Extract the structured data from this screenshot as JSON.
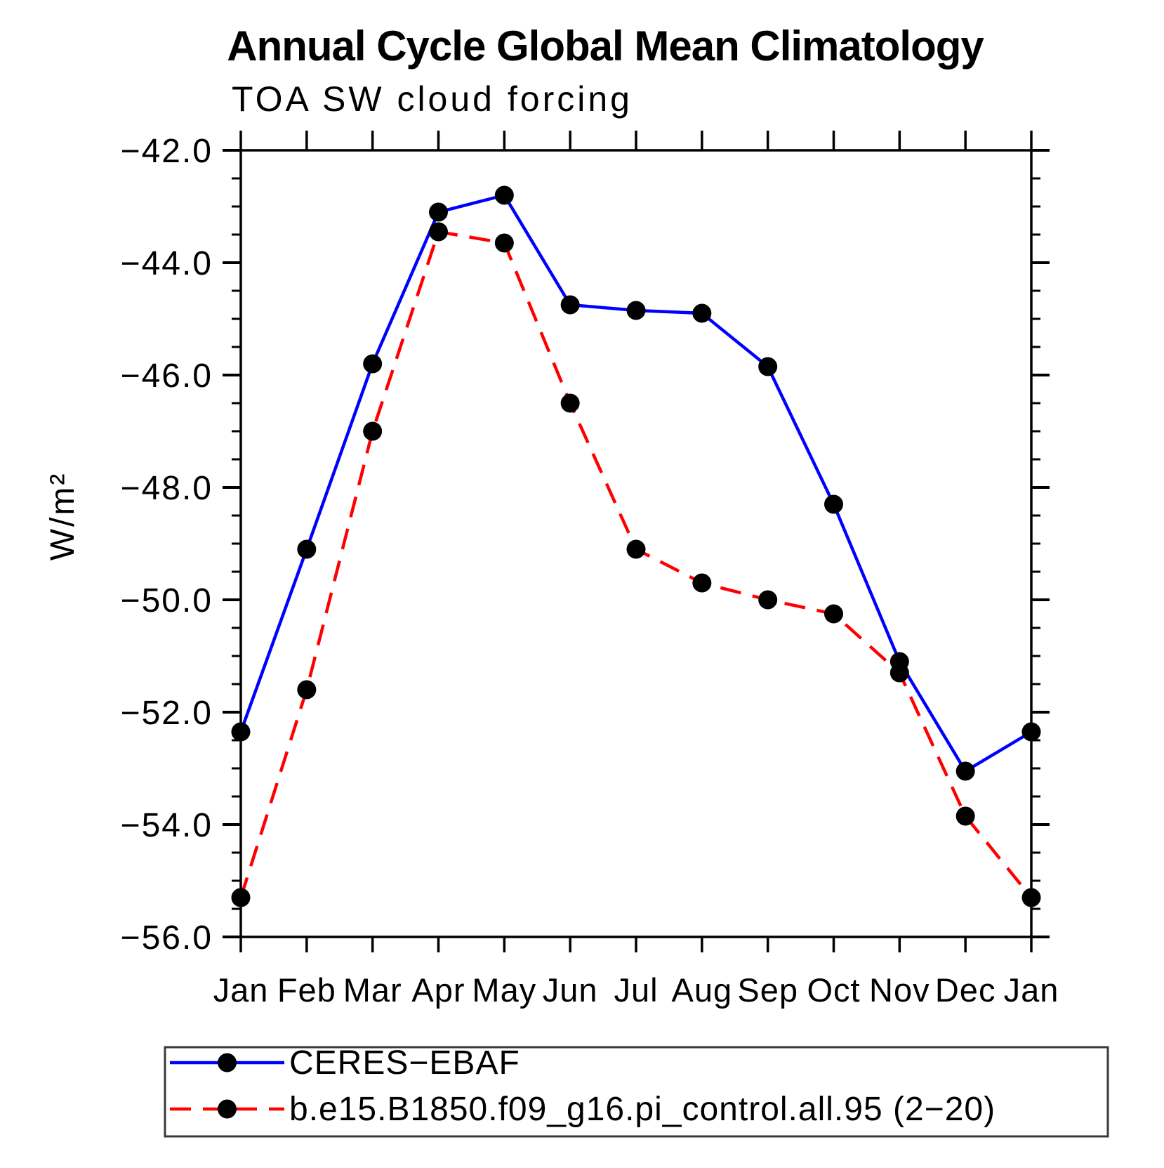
{
  "page": {
    "background_color": "#ffffff",
    "text_color": "#000000"
  },
  "chart_data": {
    "type": "line",
    "title": "Annual Cycle Global Mean Climatology",
    "subtitle": "TOA SW cloud forcing",
    "ylabel": "W/m²",
    "xlabel": "",
    "x_categories": [
      "Jan",
      "Feb",
      "Mar",
      "Apr",
      "May",
      "Jun",
      "Jul",
      "Aug",
      "Sep",
      "Oct",
      "Nov",
      "Dec",
      "Jan"
    ],
    "ylim": [
      -56.0,
      -42.0
    ],
    "y_tick_step": 2.0,
    "y_minor_step": 0.5,
    "y_tick_labels": [
      "-42.0",
      "-44.0",
      "-46.0",
      "-48.0",
      "-50.0",
      "-52.0",
      "-54.0",
      "-56.0"
    ],
    "grid": false,
    "legend_position": "bottom",
    "series": [
      {
        "name": "CERES−EBAF",
        "color": "#0000ff",
        "line_style": "solid",
        "marker": "filled-circle",
        "marker_color": "#000000",
        "values": [
          -52.35,
          -49.1,
          -45.8,
          -43.1,
          -42.8,
          -44.75,
          -44.85,
          -44.9,
          -45.85,
          -48.3,
          -51.1,
          -53.05,
          -52.35
        ]
      },
      {
        "name": "b.e15.B1850.f09_g16.pi_control.all.95 (2−20)",
        "color": "#ff0000",
        "line_style": "dashed",
        "marker": "filled-circle",
        "marker_color": "#000000",
        "values": [
          -55.3,
          -51.6,
          -47.0,
          -43.45,
          -43.65,
          -46.5,
          -49.1,
          -49.7,
          -50.0,
          -50.25,
          -51.3,
          -53.85,
          -55.3
        ]
      }
    ]
  }
}
